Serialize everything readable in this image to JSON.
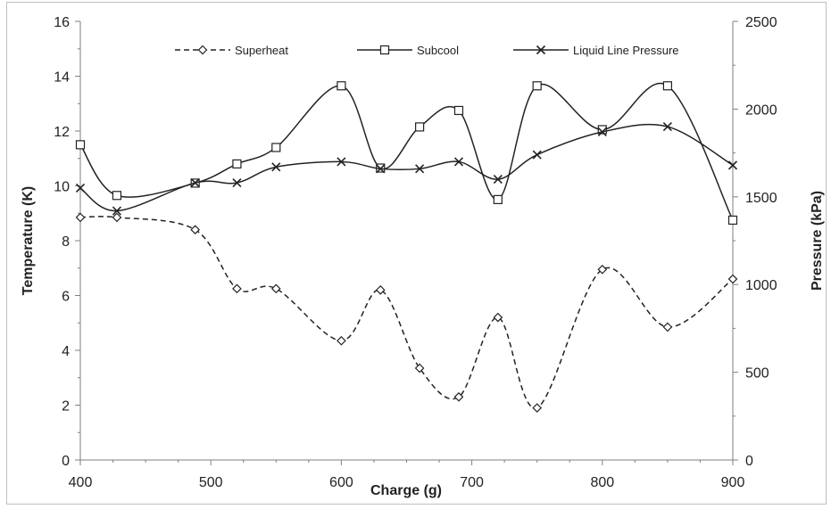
{
  "chart_data": {
    "type": "line",
    "xlabel": "Charge (g)",
    "ylabel_left": "Temperature (K)",
    "ylabel_right": "Pressure (kPa)",
    "xlim": [
      400,
      900
    ],
    "xticks": [
      400,
      500,
      600,
      700,
      800,
      900
    ],
    "ylim_left": [
      0,
      16
    ],
    "yticks_left": [
      0,
      2,
      4,
      6,
      8,
      10,
      12,
      14,
      16
    ],
    "ylim_right": [
      0,
      2500
    ],
    "yticks_right": [
      0,
      500,
      1000,
      1500,
      2000,
      2500
    ],
    "grid": false,
    "legend_position": "top",
    "series": [
      {
        "name": "Superheat",
        "axis": "left",
        "marker": "diamond",
        "line": "dashed",
        "color": "#222222",
        "x": [
          400,
          428,
          488,
          520,
          550,
          600,
          630,
          660,
          690,
          720,
          750,
          800,
          850,
          900
        ],
        "y": [
          8.85,
          8.85,
          8.4,
          6.25,
          6.25,
          4.35,
          6.2,
          3.35,
          2.3,
          5.2,
          1.9,
          6.95,
          4.85,
          6.6
        ]
      },
      {
        "name": "Subcool",
        "axis": "left",
        "marker": "square",
        "line": "solid",
        "color": "#222222",
        "x": [
          400,
          428,
          488,
          520,
          550,
          600,
          630,
          660,
          690,
          720,
          750,
          800,
          850,
          900
        ],
        "y": [
          11.5,
          9.65,
          10.1,
          10.8,
          11.4,
          13.65,
          10.65,
          12.15,
          12.75,
          9.5,
          13.65,
          12.05,
          13.65,
          8.75
        ]
      },
      {
        "name": "Liquid Line Pressure",
        "axis": "right",
        "marker": "x",
        "line": "solid",
        "color": "#222222",
        "x": [
          400,
          428,
          488,
          520,
          550,
          600,
          630,
          660,
          690,
          720,
          750,
          800,
          850,
          900
        ],
        "y": [
          1550,
          1420,
          1580,
          1580,
          1670,
          1700,
          1660,
          1660,
          1700,
          1600,
          1740,
          1870,
          1900,
          1680
        ]
      }
    ]
  }
}
